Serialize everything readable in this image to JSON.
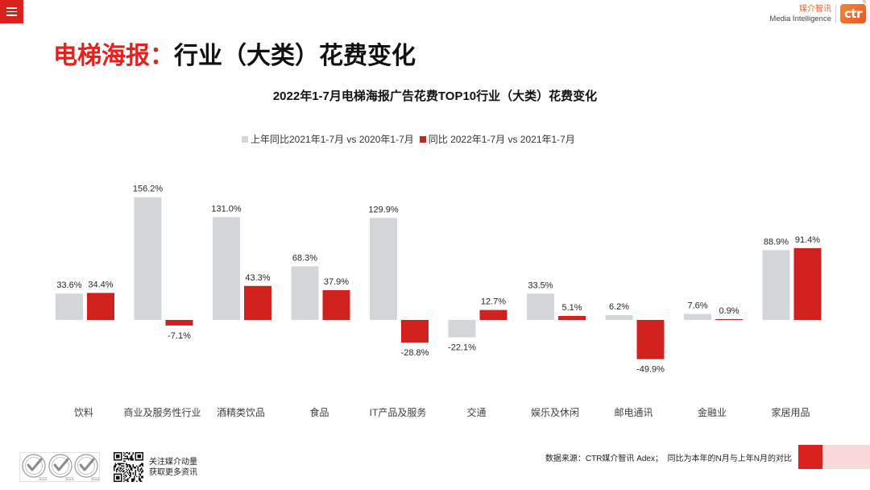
{
  "header": {
    "brand_cn": "媒介智讯",
    "brand_en": "Media Intelligence",
    "logo_text": "ctr",
    "logo_mark": "®"
  },
  "icons": {
    "menu": "menu-icon",
    "certification": "sgs-badge-icon",
    "qr": "qr-code-icon"
  },
  "colors": {
    "accent_red": "#D9221E",
    "title_red": "#E4211D",
    "brand_orange": "#E8632B",
    "footer_pink": "#F7D9D8"
  },
  "page_title": {
    "highlight": "电梯海报：",
    "rest": "行业（大类）花费变化"
  },
  "chart_data": {
    "type": "bar",
    "title": "2022年1-7月电梯海报广告花费TOP10行业（大类）花费变化",
    "xlabel": "",
    "ylabel": "",
    "unit": "%",
    "legend_position": "top",
    "grid": false,
    "y_axis_visible": false,
    "categories": [
      "饮料",
      "商业及服务性行业",
      "酒精类饮品",
      "食品",
      "IT产品及服务",
      "交通",
      "娱乐及休闲",
      "邮电通讯",
      "金融业",
      "家居用品"
    ],
    "series": [
      {
        "name": "上年同比2021年1-7月 vs 2020年1-7月",
        "color": "#D3D6D8",
        "values": [
          33.6,
          156.2,
          131.0,
          68.3,
          129.9,
          -22.1,
          33.5,
          6.2,
          7.6,
          88.9
        ]
      },
      {
        "name": "同比 2022年1-7月 vs 2021年1-7月",
        "color": "#D0211F",
        "values": [
          34.4,
          -7.1,
          43.3,
          37.9,
          -28.8,
          12.7,
          5.1,
          -49.9,
          0.9,
          91.4
        ]
      }
    ]
  },
  "footer": {
    "cert_label": "SGS",
    "qr_caption_line1": "关注媒介动量",
    "qr_caption_line2": "获取更多资讯",
    "source_note": "数据来源：CTR媒介智讯 Adex；  同比为本年的N月与上年N月的对比"
  }
}
